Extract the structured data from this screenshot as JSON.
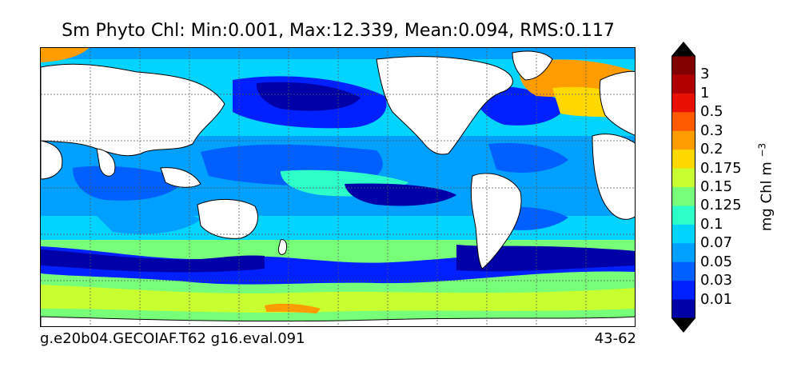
{
  "title": "Sm Phyto Chl: Min:0.001, Max:12.339, Mean:0.094, RMS:0.117",
  "footer": {
    "left": "g.e20b04.GECOIAF.T62 g16.eval.091",
    "right": "43-62"
  },
  "colorbar": {
    "unit_text": "mg Chl m",
    "unit_exponent": "−3",
    "labels": [
      "3",
      "1",
      "0.5",
      "0.3",
      "0.2",
      "0.175",
      "0.15",
      "0.125",
      "0.1",
      "0.07",
      "0.05",
      "0.03",
      "0.01"
    ],
    "colors": [
      "#800000",
      "#b00000",
      "#e81000",
      "#ff5a00",
      "#ff9c00",
      "#ffd800",
      "#c8ff30",
      "#78ff7a",
      "#2cffc8",
      "#00d4ff",
      "#00a0ff",
      "#0060ff",
      "#0020ff",
      "#0000a8"
    ],
    "extend_top_color": "#000000",
    "extend_bottom_color": "#000000"
  },
  "map": {
    "land_color": "#ffffff",
    "ocean_palette": {
      "very_low": "#0000a8",
      "low": "#0020ff",
      "mid_low": "#0060ff",
      "medium": "#00a0ff",
      "mid_high": "#00d4ff",
      "high": "#2cffc8",
      "higher": "#78ff7a",
      "very_high": "#c8ff30",
      "peak": "#ffd800",
      "orange": "#ff9c00",
      "red": "#e81000"
    }
  }
}
